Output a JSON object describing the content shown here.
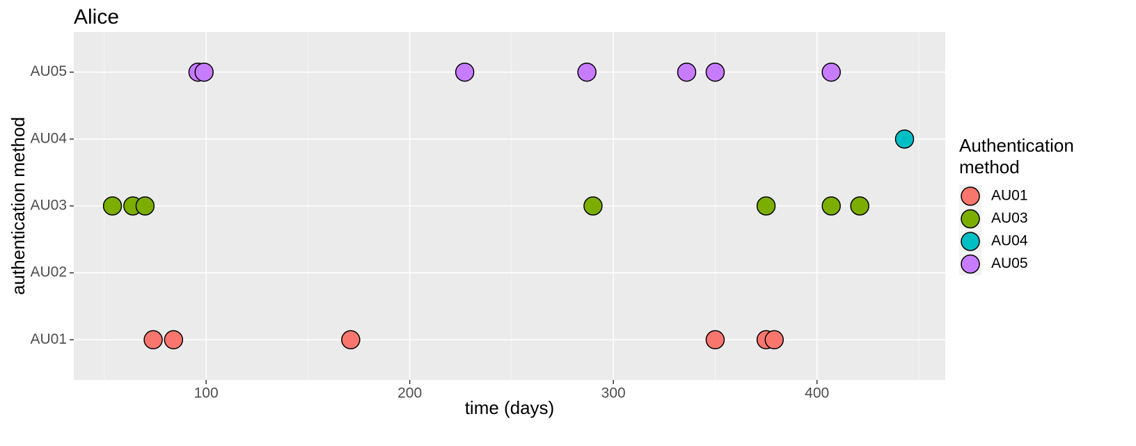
{
  "chart_data": {
    "type": "scatter",
    "title": "Alice",
    "x_label": "time (days)",
    "y_label": "authentication method",
    "legend_title": "Authentication method",
    "xlim": [
      35,
      463
    ],
    "xticks": [
      100,
      200,
      300,
      400
    ],
    "minor_xticks": [
      50,
      150,
      250,
      350,
      450
    ],
    "y_categories": [
      "AU01",
      "AU02",
      "AU03",
      "AU04",
      "AU05"
    ],
    "grid": true,
    "legend": "right",
    "series": [
      {
        "name": "AU01",
        "color": "#F8766D",
        "x": [
          74,
          84,
          171,
          350,
          375,
          379
        ]
      },
      {
        "name": "AU03",
        "color": "#7CAE00",
        "x": [
          54,
          64,
          70,
          290,
          375,
          407,
          421
        ]
      },
      {
        "name": "AU04",
        "color": "#00BFC4",
        "x": [
          443
        ]
      },
      {
        "name": "AU05",
        "color": "#C77CFF",
        "x": [
          96,
          99,
          227,
          287,
          336,
          350,
          407
        ]
      }
    ]
  }
}
